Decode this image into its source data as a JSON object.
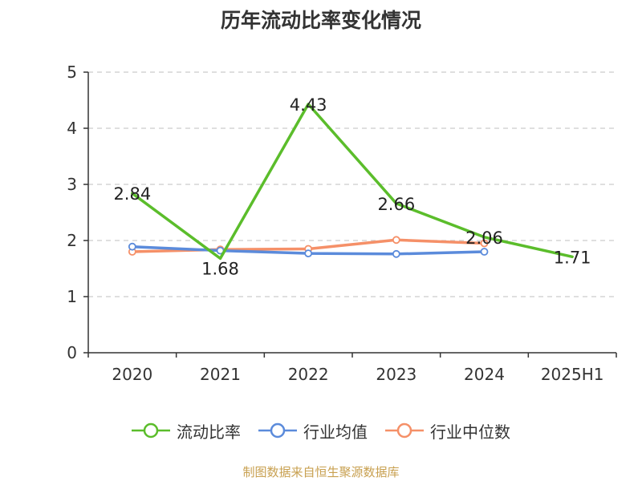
{
  "chart_data": {
    "type": "line",
    "title": "历年流动比率变化情况",
    "categories": [
      "2020",
      "2021",
      "2022",
      "2023",
      "2024",
      "2025H1"
    ],
    "ylim": [
      0,
      5
    ],
    "yticks": [
      "0",
      "1",
      "2",
      "3",
      "4",
      "5"
    ],
    "grid": true,
    "legend_position": "bottom",
    "series": [
      {
        "name": "流动比率",
        "color": "#5bbd2b",
        "values": [
          2.84,
          1.68,
          4.43,
          2.66,
          2.06,
          1.71
        ],
        "labels": [
          "2.84",
          "1.68",
          "4.43",
          "2.66",
          "2.06",
          "1.71"
        ],
        "show_markers": false
      },
      {
        "name": "行业均值",
        "color": "#5b8bdb",
        "values": [
          1.89,
          1.82,
          1.77,
          1.76,
          1.8,
          null
        ],
        "show_markers": true
      },
      {
        "name": "行业中位数",
        "color": "#f59068",
        "values": [
          1.8,
          1.84,
          1.85,
          2.01,
          1.95,
          null
        ],
        "show_markers": true
      }
    ]
  },
  "source_note": "制图数据来自恒生聚源数据库"
}
